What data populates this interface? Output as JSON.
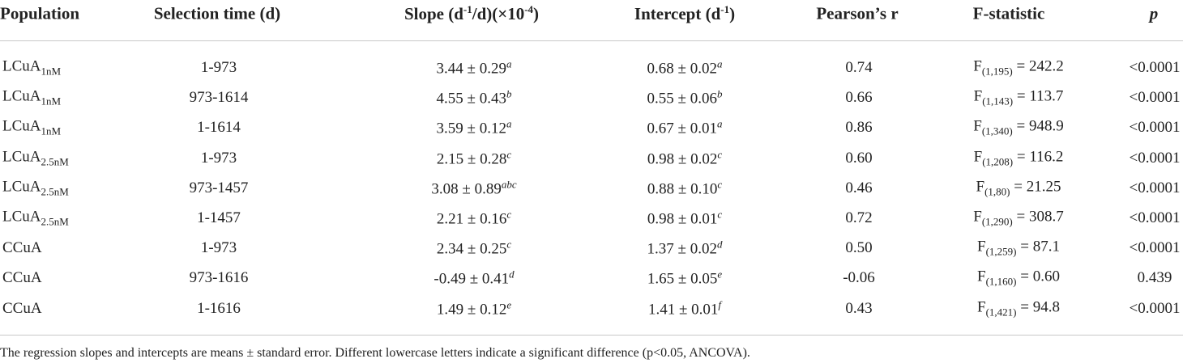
{
  "table": {
    "header": [
      [
        {
          "text": "Population"
        }
      ],
      [
        {
          "text": "Selection time (d)"
        }
      ],
      [
        {
          "text": "Slope (d"
        },
        {
          "sup": "-1"
        },
        {
          "text": "/d)(×10"
        },
        {
          "sup": "-4"
        },
        {
          "text": ")"
        }
      ],
      [
        {
          "text": "Intercept (d"
        },
        {
          "sup": "-1"
        },
        {
          "text": ")"
        }
      ],
      [
        {
          "text": "Pearson’s r"
        }
      ],
      [
        {
          "text": "F-statistic"
        }
      ],
      [
        {
          "text": "p"
        }
      ]
    ],
    "rows": [
      [
        [
          {
            "text": "LCuA"
          },
          {
            "sub": "1nM"
          }
        ],
        [
          {
            "text": "1-973"
          }
        ],
        [
          {
            "text": "3.44 ± 0.29"
          },
          {
            "sup": "a"
          }
        ],
        [
          {
            "text": "0.68 ± 0.02"
          },
          {
            "sup": "a"
          }
        ],
        [
          {
            "text": "0.74"
          }
        ],
        [
          {
            "text": "F"
          },
          {
            "sub": "(1,195)"
          },
          {
            "text": " = 242.2"
          }
        ],
        [
          {
            "text": "<0.0001"
          }
        ]
      ],
      [
        [
          {
            "text": "LCuA"
          },
          {
            "sub": "1nM"
          }
        ],
        [
          {
            "text": "973-1614"
          }
        ],
        [
          {
            "text": "4.55 ± 0.43"
          },
          {
            "sup": "b"
          }
        ],
        [
          {
            "text": "0.55 ± 0.06"
          },
          {
            "sup": "b"
          }
        ],
        [
          {
            "text": "0.66"
          }
        ],
        [
          {
            "text": "F"
          },
          {
            "sub": "(1,143)"
          },
          {
            "text": " = 113.7"
          }
        ],
        [
          {
            "text": "<0.0001"
          }
        ]
      ],
      [
        [
          {
            "text": "LCuA"
          },
          {
            "sub": "1nM"
          }
        ],
        [
          {
            "text": "1-1614"
          }
        ],
        [
          {
            "text": "3.59 ± 0.12"
          },
          {
            "sup": "a"
          }
        ],
        [
          {
            "text": "0.67 ± 0.01"
          },
          {
            "sup": "a"
          }
        ],
        [
          {
            "text": "0.86"
          }
        ],
        [
          {
            "text": "F"
          },
          {
            "sub": "(1,340)"
          },
          {
            "text": " = 948.9"
          }
        ],
        [
          {
            "text": "<0.0001"
          }
        ]
      ],
      [
        [
          {
            "text": "LCuA"
          },
          {
            "sub": "2.5nM"
          }
        ],
        [
          {
            "text": "1-973"
          }
        ],
        [
          {
            "text": "2.15 ± 0.28"
          },
          {
            "sup": "c"
          }
        ],
        [
          {
            "text": "0.98 ± 0.02"
          },
          {
            "sup": "c"
          }
        ],
        [
          {
            "text": "0.60"
          }
        ],
        [
          {
            "text": "F"
          },
          {
            "sub": "(1,208)"
          },
          {
            "text": " = 116.2"
          }
        ],
        [
          {
            "text": "<0.0001"
          }
        ]
      ],
      [
        [
          {
            "text": "LCuA"
          },
          {
            "sub": "2.5nM"
          }
        ],
        [
          {
            "text": "973-1457"
          }
        ],
        [
          {
            "text": "3.08 ± 0.89"
          },
          {
            "sup": "abc"
          }
        ],
        [
          {
            "text": "0.88 ± 0.10"
          },
          {
            "sup": "c"
          }
        ],
        [
          {
            "text": "0.46"
          }
        ],
        [
          {
            "text": "F"
          },
          {
            "sub": "(1,80)"
          },
          {
            "text": " = 21.25"
          }
        ],
        [
          {
            "text": "<0.0001"
          }
        ]
      ],
      [
        [
          {
            "text": "LCuA"
          },
          {
            "sub": "2.5nM"
          }
        ],
        [
          {
            "text": "1-1457"
          }
        ],
        [
          {
            "text": "2.21 ± 0.16"
          },
          {
            "sup": "c"
          }
        ],
        [
          {
            "text": "0.98 ± 0.01"
          },
          {
            "sup": "c"
          }
        ],
        [
          {
            "text": "0.72"
          }
        ],
        [
          {
            "text": "F"
          },
          {
            "sub": "(1,290)"
          },
          {
            "text": " = 308.7"
          }
        ],
        [
          {
            "text": "<0.0001"
          }
        ]
      ],
      [
        [
          {
            "text": "CCuA"
          }
        ],
        [
          {
            "text": "1-973"
          }
        ],
        [
          {
            "text": "2.34 ± 0.25"
          },
          {
            "sup": "c"
          }
        ],
        [
          {
            "text": "1.37 ± 0.02"
          },
          {
            "sup": "d"
          }
        ],
        [
          {
            "text": "0.50"
          }
        ],
        [
          {
            "text": "F"
          },
          {
            "sub": "(1,259)"
          },
          {
            "text": " = 87.1"
          }
        ],
        [
          {
            "text": "<0.0001"
          }
        ]
      ],
      [
        [
          {
            "text": "CCuA"
          }
        ],
        [
          {
            "text": "973-1616"
          }
        ],
        [
          {
            "text": "-0.49 ± 0.41"
          },
          {
            "sup": "d"
          }
        ],
        [
          {
            "text": "1.65 ± 0.05"
          },
          {
            "sup": "e"
          }
        ],
        [
          {
            "text": "-0.06"
          }
        ],
        [
          {
            "text": "F"
          },
          {
            "sub": "(1,160)"
          },
          {
            "text": " = 0.60"
          }
        ],
        [
          {
            "text": "0.439"
          }
        ]
      ],
      [
        [
          {
            "text": "CCuA"
          }
        ],
        [
          {
            "text": "1-1616"
          }
        ],
        [
          {
            "text": "1.49 ± 0.12"
          },
          {
            "sup": "e"
          }
        ],
        [
          {
            "text": "1.41 ± 0.01"
          },
          {
            "sup": "f"
          }
        ],
        [
          {
            "text": "0.43"
          }
        ],
        [
          {
            "text": "F"
          },
          {
            "sub": "(1,421)"
          },
          {
            "text": " = 94.8"
          }
        ],
        [
          {
            "text": "<0.0001"
          }
        ]
      ]
    ],
    "footnote": "The regression slopes and intercepts are means ± standard error. Different lowercase letters indicate a significant difference (p<0.05, ANCOVA)."
  }
}
